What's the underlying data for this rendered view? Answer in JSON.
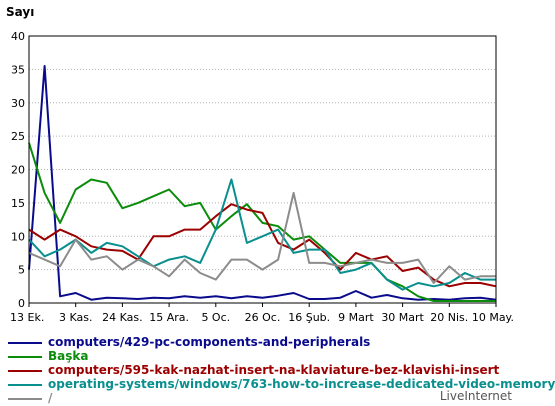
{
  "chart_data": {
    "type": "line",
    "ylabel": "Sayı",
    "ylim": [
      0,
      40
    ],
    "yticks": [
      0,
      5,
      10,
      15,
      20,
      25,
      30,
      35,
      40
    ],
    "xticks": [
      "13 Ek.",
      "3 Kas.",
      "24 Kas.",
      "15 Ara.",
      "5 Oc.",
      "26 Oc.",
      "16 Şub.",
      "9 Mart",
      "30 Mart",
      "20 Nis.",
      "10 May."
    ],
    "x_count": 31,
    "series": [
      {
        "name": "computers/429-pc-components-and-peripherals",
        "color": "#0a0a8c",
        "values": [
          5,
          35.5,
          1,
          1.5,
          0.5,
          0.8,
          0.7,
          0.6,
          0.8,
          0.7,
          1.0,
          0.8,
          1.0,
          0.7,
          1.0,
          0.8,
          1.1,
          1.5,
          0.6,
          0.6,
          0.8,
          1.8,
          0.8,
          1.2,
          0.7,
          0.5,
          0.6,
          0.5,
          0.7,
          0.8,
          0.5
        ]
      },
      {
        "name": "Başka",
        "color": "#0b8c0b",
        "values": [
          24,
          16.5,
          12,
          17,
          18.5,
          18,
          14.2,
          15,
          16,
          17,
          14.5,
          15,
          11,
          13,
          14.8,
          12,
          11.5,
          9.5,
          10,
          8,
          6,
          6,
          6,
          3.5,
          2.5,
          1,
          0.3,
          0.3,
          0.3,
          0.3,
          0.3
        ]
      },
      {
        "name": "computers/595-kak-nazhat-insert-na-klaviature-bez-klavishi-insert",
        "color": "#9c0000",
        "values": [
          11,
          9.5,
          11,
          10,
          8.5,
          8,
          7.8,
          6.5,
          10,
          10,
          11,
          11,
          13,
          14.8,
          14,
          13.5,
          9,
          8,
          9.5,
          7.5,
          5,
          7.5,
          6.5,
          7,
          4.8,
          5.3,
          3.5,
          2.5,
          3,
          3,
          2.5
        ]
      },
      {
        "name": "operating-systems/windows/763-how-to-increase-dedicated-video-memory",
        "color": "#0a8f8f",
        "values": [
          9.5,
          7,
          8,
          9.5,
          7.5,
          9,
          8.5,
          7,
          5.5,
          6.5,
          7,
          6,
          11,
          18.5,
          9,
          10,
          11,
          7.5,
          8,
          8,
          4.5,
          5,
          6,
          3.5,
          2,
          3,
          2.5,
          3,
          4.5,
          3.5,
          3.5
        ]
      },
      {
        "name": "/",
        "color": "#8c8c8c",
        "values": [
          7.5,
          6.5,
          5.5,
          9.5,
          6.5,
          7,
          5,
          6.5,
          5.5,
          4,
          6.5,
          4.5,
          3.5,
          6.5,
          6.5,
          5,
          6.5,
          16.5,
          6,
          6,
          5.5,
          6,
          6.5,
          6,
          6,
          6.5,
          3,
          5.5,
          3.5,
          4,
          4
        ]
      }
    ]
  },
  "legend_items": [
    {
      "label": "computers/429-pc-components-and-peripherals",
      "color": "#0a0a8c"
    },
    {
      "label": "Başka",
      "color": "#0b8c0b"
    },
    {
      "label": "computers/595-kak-nazhat-insert-na-klaviature-bez-klavishi-insert",
      "color": "#9c0000"
    },
    {
      "label": "operating-systems/windows/763-how-to-increase-dedicated-video-memory",
      "color": "#0a8f8f"
    },
    {
      "label": "/",
      "color": "#8c8c8c"
    }
  ],
  "credit": "LiveInternet"
}
